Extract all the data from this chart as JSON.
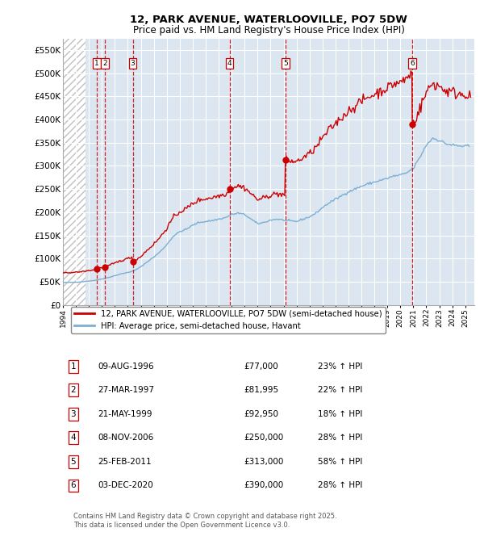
{
  "title": "12, PARK AVENUE, WATERLOOVILLE, PO7 5DW",
  "subtitle": "Price paid vs. HM Land Registry's House Price Index (HPI)",
  "property_label": "12, PARK AVENUE, WATERLOOVILLE, PO7 5DW (semi-detached house)",
  "hpi_label": "HPI: Average price, semi-detached house, Havant",
  "footer_line1": "Contains HM Land Registry data © Crown copyright and database right 2025.",
  "footer_line2": "This data is licensed under the Open Government Licence v3.0.",
  "transactions": [
    {
      "num": 1,
      "date_str": "09-AUG-1996",
      "price": 77000,
      "pct": "23%",
      "dir": "↑"
    },
    {
      "num": 2,
      "date_str": "27-MAR-1997",
      "price": 81995,
      "pct": "22%",
      "dir": "↑"
    },
    {
      "num": 3,
      "date_str": "21-MAY-1999",
      "price": 92950,
      "pct": "18%",
      "dir": "↑"
    },
    {
      "num": 4,
      "date_str": "08-NOV-2006",
      "price": 250000,
      "pct": "28%",
      "dir": "↑"
    },
    {
      "num": 5,
      "date_str": "25-FEB-2011",
      "price": 313000,
      "pct": "58%",
      "dir": "↑"
    },
    {
      "num": 6,
      "date_str": "03-DEC-2020",
      "price": 390000,
      "pct": "28%",
      "dir": "↑"
    }
  ],
  "trans_decimal": [
    1996.6,
    1997.23,
    1999.38,
    2006.84,
    2011.14,
    2020.92
  ],
  "ylim": [
    0,
    575000
  ],
  "yticks": [
    0,
    50000,
    100000,
    150000,
    200000,
    250000,
    300000,
    350000,
    400000,
    450000,
    500000,
    550000
  ],
  "ytick_labels": [
    "£0",
    "£50K",
    "£100K",
    "£150K",
    "£200K",
    "£250K",
    "£300K",
    "£350K",
    "£400K",
    "£450K",
    "£500K",
    "£550K"
  ],
  "xlim_start": 1994.0,
  "xlim_end": 2025.7,
  "hatch_end": 1995.75,
  "property_color": "#cc0000",
  "hpi_color": "#7bafd4",
  "bg_color": "#dce6f1",
  "grid_color": "#ffffff",
  "vline_color": "#cc0000",
  "dot_color": "#cc0000",
  "dot_size": 6
}
